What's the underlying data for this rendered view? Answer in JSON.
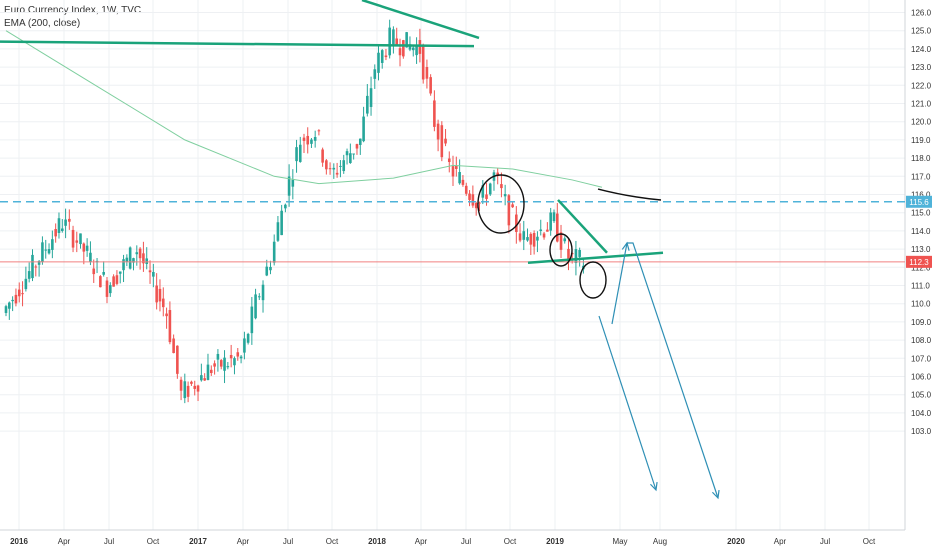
{
  "legend": {
    "title": "Euro Currency Index, 1W, TVC",
    "indicator": "EMA (200, close)"
  },
  "colors": {
    "up": "#26a69a",
    "down": "#ef5350",
    "ema": "#7fcf9f",
    "drawing_green": "#1aa37a",
    "drawing_blue": "#2e8fb5",
    "dashed_level": "#4fb3d9",
    "red_level": "#f08080",
    "grid": "#eef0f3"
  },
  "chart_data": {
    "type": "candlestick",
    "title": "Euro Currency Index, 1W, TVC",
    "xlabel": "",
    "ylabel": "",
    "ylim": [
      102.5,
      126.7
    ],
    "grid": true,
    "y_ticks": [
      103.0,
      104.0,
      105.0,
      106.0,
      107.0,
      108.0,
      109.0,
      110.0,
      111.0,
      112.0,
      113.0,
      114.0,
      115.0,
      116.0,
      117.0,
      118.0,
      119.0,
      120.0,
      121.0,
      122.0,
      123.0,
      124.0,
      125.0,
      126.0
    ],
    "x_ticks": [
      {
        "label": "2016",
        "bold": true
      },
      {
        "label": "Apr",
        "bold": false
      },
      {
        "label": "Jul",
        "bold": false
      },
      {
        "label": "Oct",
        "bold": false
      },
      {
        "label": "2017",
        "bold": true
      },
      {
        "label": "Apr",
        "bold": false
      },
      {
        "label": "Jul",
        "bold": false
      },
      {
        "label": "Oct",
        "bold": false
      },
      {
        "label": "2018",
        "bold": true
      },
      {
        "label": "Apr",
        "bold": false
      },
      {
        "label": "Jul",
        "bold": false
      },
      {
        "label": "Oct",
        "bold": false
      },
      {
        "label": "2019",
        "bold": true
      },
      {
        "label": "May",
        "bold": false
      },
      {
        "label": "Aug",
        "bold": false
      },
      {
        "label": "2020",
        "bold": true
      },
      {
        "label": "Apr",
        "bold": false
      },
      {
        "label": "Jul",
        "bold": false
      },
      {
        "label": "Oct",
        "bold": false
      }
    ],
    "last_price": 112.3,
    "horizontal_level": 115.6,
    "price_labels": [
      "115.6",
      "112.3"
    ],
    "anchors": [
      {
        "label": "2015-12",
        "value": 109.5
      },
      {
        "label": "2016-02",
        "value": 112.0
      },
      {
        "label": "2016-04",
        "value": 114.5
      },
      {
        "label": "2016-05",
        "value": 113.5
      },
      {
        "label": "2016-07",
        "value": 111.0
      },
      {
        "label": "2016-09",
        "value": 113.0
      },
      {
        "label": "2016-11",
        "value": 109.5
      },
      {
        "label": "2016-12",
        "value": 105.0
      },
      {
        "label": "2017-02",
        "value": 106.5
      },
      {
        "label": "2017-04",
        "value": 107.0
      },
      {
        "label": "2017-05",
        "value": 110.0
      },
      {
        "label": "2017-06",
        "value": 112.5
      },
      {
        "label": "2017-07",
        "value": 116.0
      },
      {
        "label": "2017-08",
        "value": 119.0
      },
      {
        "label": "2017-09",
        "value": 119.5
      },
      {
        "label": "2017-10",
        "value": 117.0
      },
      {
        "label": "2017-12",
        "value": 119.0
      },
      {
        "label": "2018-01",
        "value": 123.0
      },
      {
        "label": "2018-02",
        "value": 124.5
      },
      {
        "label": "2018-04",
        "value": 124.0
      },
      {
        "label": "2018-05",
        "value": 120.0
      },
      {
        "label": "2018-06",
        "value": 117.5
      },
      {
        "label": "2018-08",
        "value": 115.5
      },
      {
        "label": "2018-09",
        "value": 117.0
      },
      {
        "label": "2018-10",
        "value": 115.0
      },
      {
        "label": "2018-11",
        "value": 113.5
      },
      {
        "label": "2019-01",
        "value": 114.5
      },
      {
        "label": "2019-02",
        "value": 112.5
      },
      {
        "label": "2019-03",
        "value": 112.3
      }
    ],
    "series": [
      {
        "name": "EMA (200, close)",
        "type": "line",
        "x": [
          "2015-12",
          "2016-06",
          "2016-12",
          "2017-06",
          "2017-09",
          "2018-02",
          "2018-06",
          "2018-10",
          "2019-02",
          "2019-04"
        ],
        "values": [
          125.0,
          122.0,
          119.0,
          117.0,
          116.6,
          116.9,
          117.6,
          117.4,
          116.8,
          116.4
        ]
      }
    ]
  }
}
